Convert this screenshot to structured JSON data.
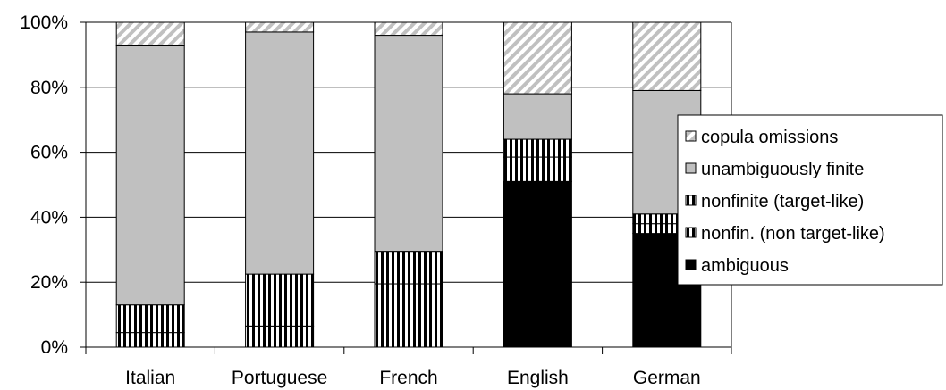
{
  "chart_data": {
    "type": "bar",
    "stacked": true,
    "categories": [
      "Italian",
      "Portuguese",
      "French",
      "English",
      "German"
    ],
    "series": [
      {
        "name": "ambiguous",
        "pattern": "solid-black",
        "values": [
          0,
          0,
          0,
          51,
          35
        ]
      },
      {
        "name": "nonfin. (non target-like)",
        "pattern": "vertical-stripes",
        "values": [
          4.5,
          6.5,
          19.5,
          7.5,
          3
        ]
      },
      {
        "name": "nonfinite (target-like)",
        "pattern": "vertical-stripes",
        "values": [
          8.5,
          16,
          10,
          5.5,
          3
        ]
      },
      {
        "name": "unambiguously finite",
        "pattern": "solid-gray",
        "values": [
          80,
          74.5,
          66.5,
          14,
          38
        ]
      },
      {
        "name": "copula omissions",
        "pattern": "diagonal-hatch",
        "values": [
          7,
          3,
          4,
          22,
          21
        ]
      }
    ],
    "legend_order": [
      "copula omissions",
      "unambiguously finite",
      "nonfinite (target-like)",
      "nonfin. (non target-like)",
      "ambiguous"
    ],
    "y_ticks": [
      "0%",
      "20%",
      "40%",
      "60%",
      "80%",
      "100%"
    ],
    "ylim": [
      0,
      100
    ],
    "grid": true,
    "legend_position": "right",
    "colors": {
      "ambiguous": "#000000",
      "finite": "#c0c0c0",
      "hatch": "#c0c0c0",
      "stripes": "#000000"
    }
  }
}
